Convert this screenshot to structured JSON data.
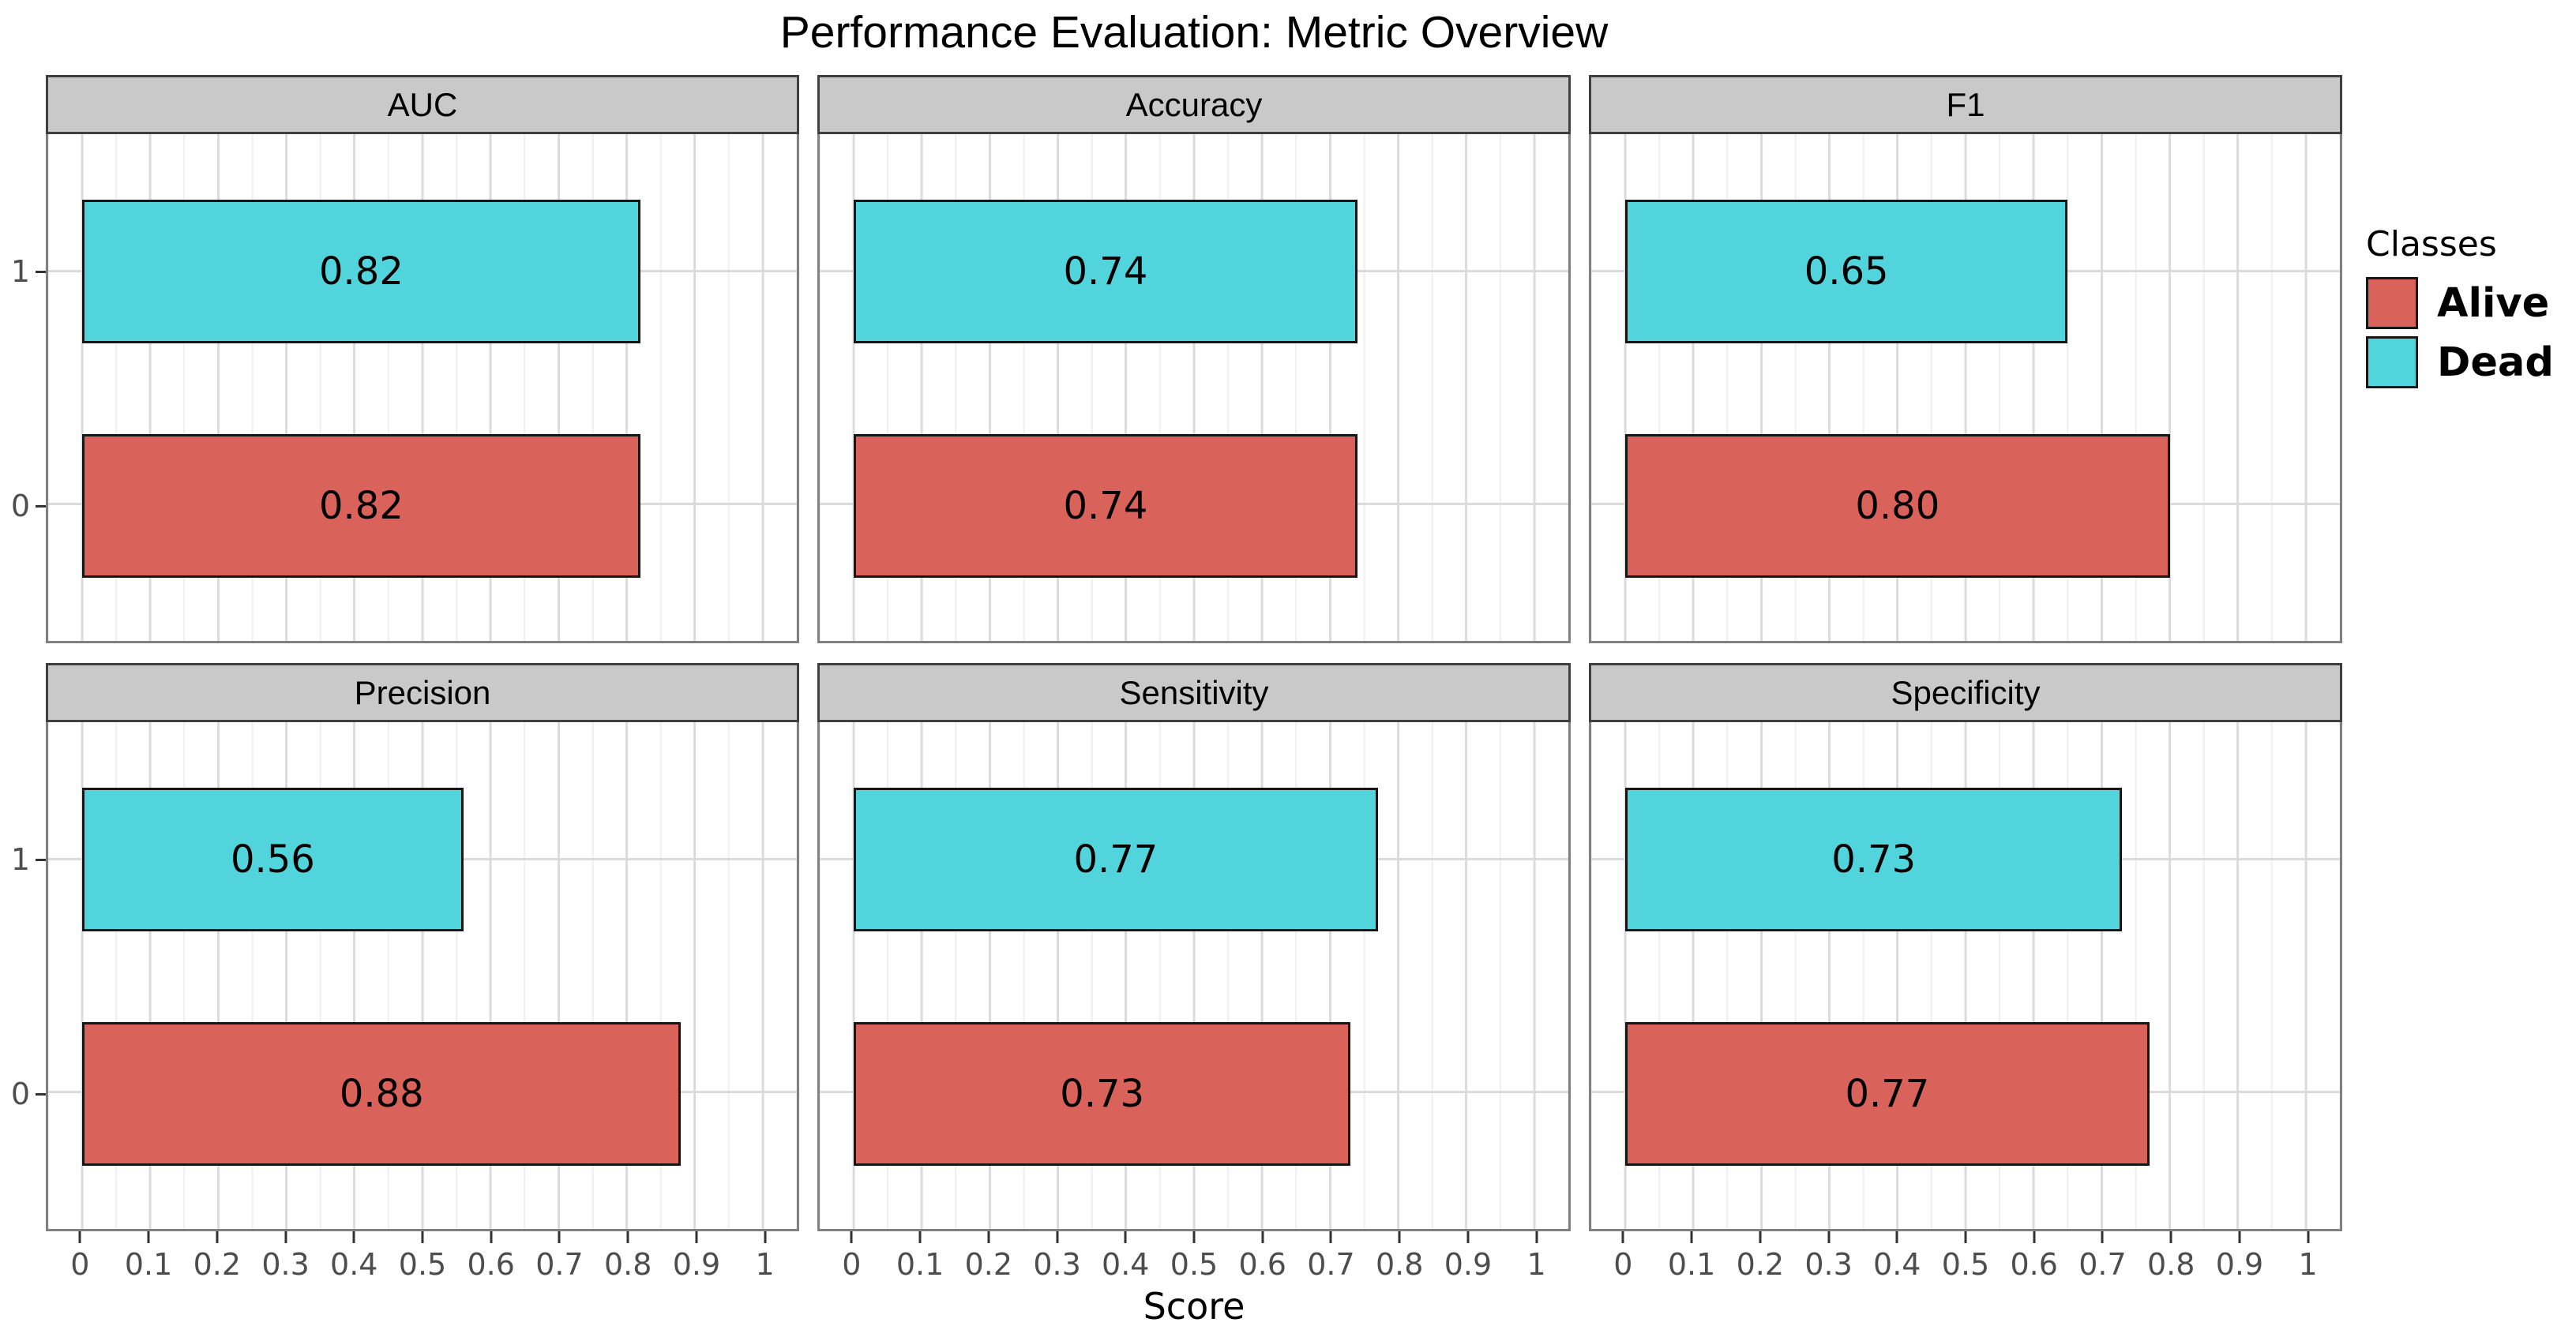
{
  "title": "Performance Evaluation: Metric Overview",
  "axis": {
    "xlabel": "Score",
    "x_ticks": [
      "0",
      "0.1",
      "0.2",
      "0.3",
      "0.4",
      "0.5",
      "0.6",
      "0.7",
      "0.8",
      "0.9",
      "1"
    ],
    "y_ticks": [
      "1",
      "0"
    ]
  },
  "legend": {
    "title": "Classes",
    "items": [
      {
        "label": "Alive",
        "color": "#D9625A"
      },
      {
        "label": "Dead",
        "color": "#52D4DC"
      }
    ]
  },
  "chart_data": {
    "type": "bar",
    "orientation": "horizontal",
    "title": "Performance Evaluation: Metric Overview",
    "xlabel": "Score",
    "xlim": [
      0,
      1
    ],
    "x_tick_step": 0.1,
    "grid": "major-and-minor",
    "y_categories": [
      "1",
      "0"
    ],
    "legend_title": "Classes",
    "legend_position": "right",
    "series": [
      {
        "name": "Alive",
        "category": "0",
        "color": "#D9625A"
      },
      {
        "name": "Dead",
        "category": "1",
        "color": "#52D4DC"
      }
    ],
    "facets": [
      {
        "metric": "AUC",
        "bars": [
          {
            "category": "1",
            "series": "Dead",
            "value": 0.82,
            "display": "0.82"
          },
          {
            "category": "0",
            "series": "Alive",
            "value": 0.82,
            "display": "0.82"
          }
        ]
      },
      {
        "metric": "Accuracy",
        "bars": [
          {
            "category": "1",
            "series": "Dead",
            "value": 0.74,
            "display": "0.74"
          },
          {
            "category": "0",
            "series": "Alive",
            "value": 0.74,
            "display": "0.74"
          }
        ]
      },
      {
        "metric": "F1",
        "bars": [
          {
            "category": "1",
            "series": "Dead",
            "value": 0.65,
            "display": "0.65"
          },
          {
            "category": "0",
            "series": "Alive",
            "value": 0.8,
            "display": "0.80"
          }
        ]
      },
      {
        "metric": "Precision",
        "bars": [
          {
            "category": "1",
            "series": "Dead",
            "value": 0.56,
            "display": "0.56"
          },
          {
            "category": "0",
            "series": "Alive",
            "value": 0.88,
            "display": "0.88"
          }
        ]
      },
      {
        "metric": "Sensitivity",
        "bars": [
          {
            "category": "1",
            "series": "Dead",
            "value": 0.77,
            "display": "0.77"
          },
          {
            "category": "0",
            "series": "Alive",
            "value": 0.73,
            "display": "0.73"
          }
        ]
      },
      {
        "metric": "Specificity",
        "bars": [
          {
            "category": "1",
            "series": "Dead",
            "value": 0.73,
            "display": "0.73"
          },
          {
            "category": "0",
            "series": "Alive",
            "value": 0.77,
            "display": "0.77"
          }
        ]
      }
    ],
    "style_colors": {
      "strip_background": "#C9C9C9",
      "strip_border": "#3F3F3F",
      "panel_border": "#808080",
      "grid_major": "#DBDBDB",
      "grid_minor": "#EFEFEF",
      "bar_border": "#161616",
      "axis_text": "#4D4D4D"
    }
  }
}
